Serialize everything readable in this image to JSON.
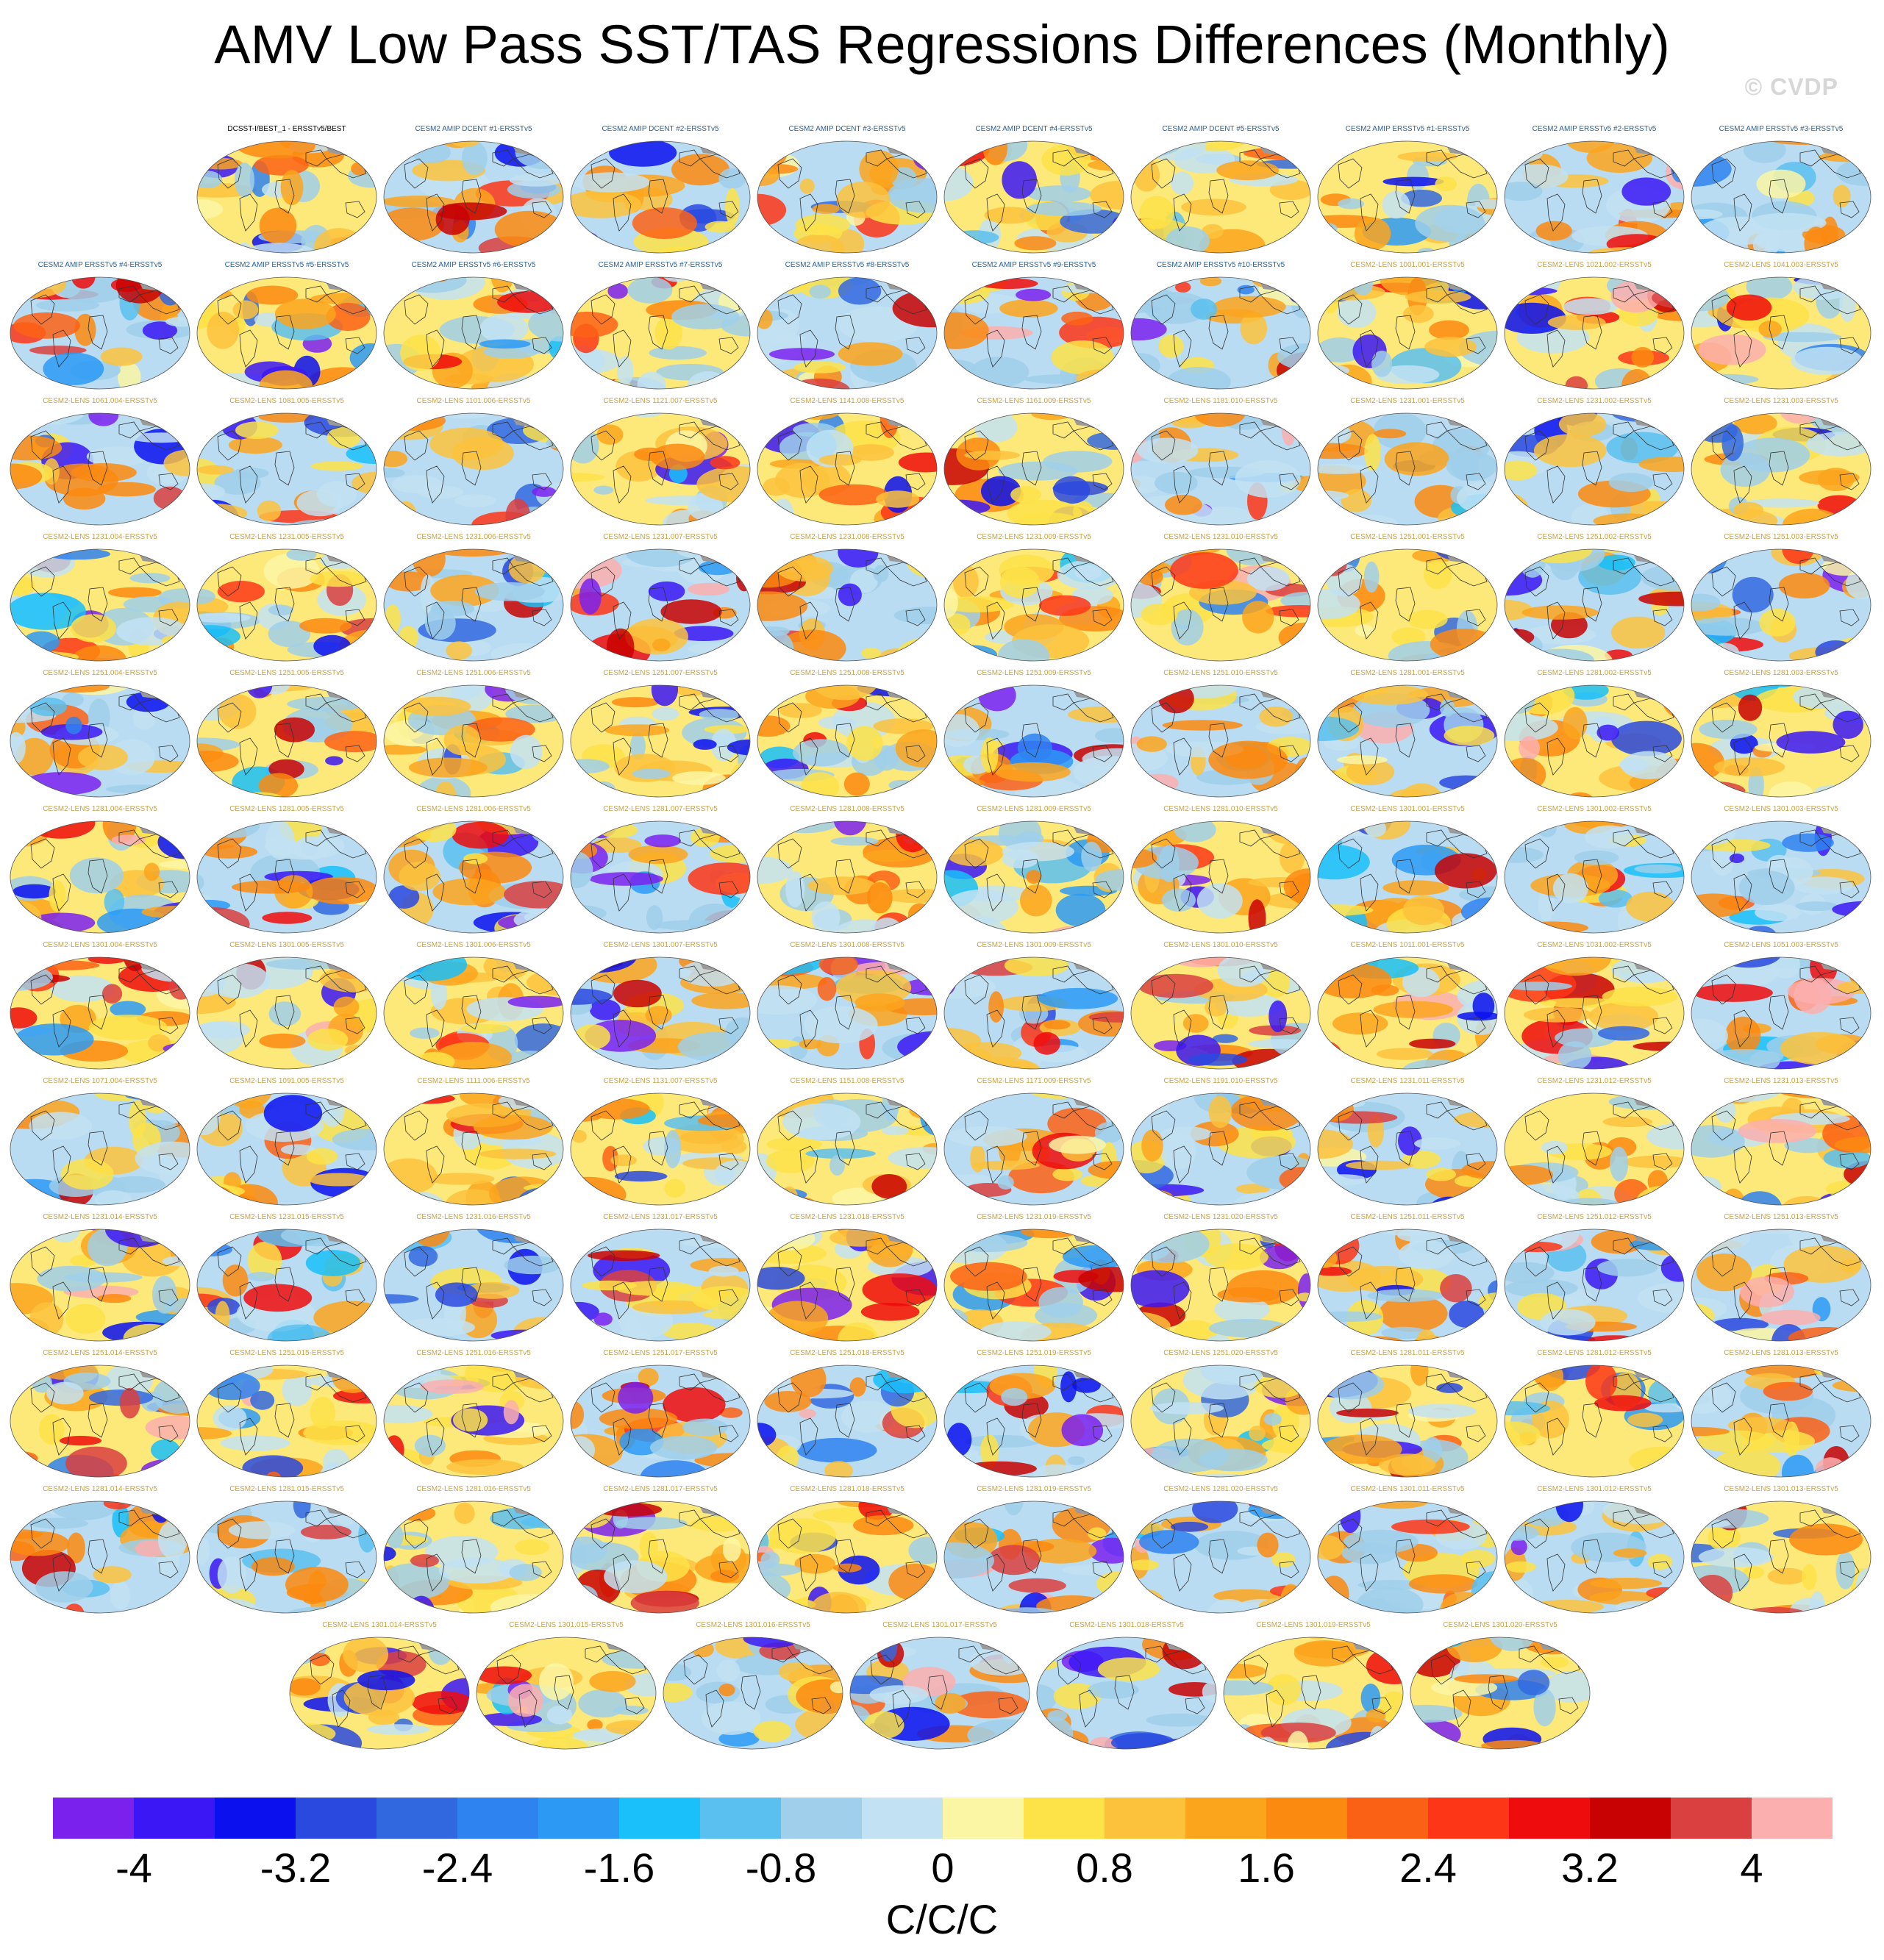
{
  "title": "AMV Low Pass SST/TAS Regressions Differences (Monthly)",
  "watermark": "© CVDP",
  "colors": {
    "obs_label": "#000000",
    "amip_label": "#2e5f94",
    "lens_label": "#c8a24a",
    "coastline": "#333333",
    "land": "#9a9a9a",
    "background": "#ffffff"
  },
  "panels": [
    {
      "label": "DCSST-I/BEST_1 - ERSSTv5/BEST",
      "group": "obs"
    },
    {
      "label": "CESM2 AMIP DCENT #1-ERSSTv5",
      "group": "amip"
    },
    {
      "label": "CESM2 AMIP DCENT #2-ERSSTv5",
      "group": "amip"
    },
    {
      "label": "CESM2 AMIP DCENT #3-ERSSTv5",
      "group": "amip"
    },
    {
      "label": "CESM2 AMIP DCENT #4-ERSSTv5",
      "group": "amip"
    },
    {
      "label": "CESM2 AMIP DCENT #5-ERSSTv5",
      "group": "amip"
    },
    {
      "label": "CESM2 AMIP ERSSTv5 #1-ERSSTv5",
      "group": "amip"
    },
    {
      "label": "CESM2 AMIP ERSSTv5 #2-ERSSTv5",
      "group": "amip"
    },
    {
      "label": "CESM2 AMIP ERSSTv5 #3-ERSSTv5",
      "group": "amip"
    },
    {
      "label": "CESM2 AMIP ERSSTv5 #4-ERSSTv5",
      "group": "amip"
    },
    {
      "label": "CESM2 AMIP ERSSTv5 #5-ERSSTv5",
      "group": "amip"
    },
    {
      "label": "CESM2 AMIP ERSSTv5 #6-ERSSTv5",
      "group": "amip"
    },
    {
      "label": "CESM2 AMIP ERSSTv5 #7-ERSSTv5",
      "group": "amip"
    },
    {
      "label": "CESM2 AMIP ERSSTv5 #8-ERSSTv5",
      "group": "amip"
    },
    {
      "label": "CESM2 AMIP ERSSTv5 #9-ERSSTv5",
      "group": "amip"
    },
    {
      "label": "CESM2 AMIP ERSSTv5 #10-ERSSTv5",
      "group": "amip"
    },
    {
      "label": "CESM2-LENS 1001.001-ERSSTv5",
      "group": "lens"
    },
    {
      "label": "CESM2-LENS 1021.002-ERSSTv5",
      "group": "lens"
    },
    {
      "label": "CESM2-LENS 1041.003-ERSSTv5",
      "group": "lens"
    },
    {
      "label": "CESM2-LENS 1061.004-ERSSTv5",
      "group": "lens"
    },
    {
      "label": "CESM2-LENS 1081.005-ERSSTv5",
      "group": "lens"
    },
    {
      "label": "CESM2-LENS 1101.006-ERSSTv5",
      "group": "lens"
    },
    {
      "label": "CESM2-LENS 1121.007-ERSSTv5",
      "group": "lens"
    },
    {
      "label": "CESM2-LENS 1141.008-ERSSTv5",
      "group": "lens"
    },
    {
      "label": "CESM2-LENS 1161.009-ERSSTv5",
      "group": "lens"
    },
    {
      "label": "CESM2-LENS 1181.010-ERSSTv5",
      "group": "lens"
    },
    {
      "label": "CESM2-LENS 1231.001-ERSSTv5",
      "group": "lens"
    },
    {
      "label": "CESM2-LENS 1231.002-ERSSTv5",
      "group": "lens"
    },
    {
      "label": "CESM2-LENS 1231.003-ERSSTv5",
      "group": "lens"
    },
    {
      "label": "CESM2-LENS 1231.004-ERSSTv5",
      "group": "lens"
    },
    {
      "label": "CESM2-LENS 1231.005-ERSSTv5",
      "group": "lens"
    },
    {
      "label": "CESM2-LENS 1231.006-ERSSTv5",
      "group": "lens"
    },
    {
      "label": "CESM2-LENS 1231.007-ERSSTv5",
      "group": "lens"
    },
    {
      "label": "CESM2-LENS 1231.008-ERSSTv5",
      "group": "lens"
    },
    {
      "label": "CESM2-LENS 1231.009-ERSSTv5",
      "group": "lens"
    },
    {
      "label": "CESM2-LENS 1231.010-ERSSTv5",
      "group": "lens"
    },
    {
      "label": "CESM2-LENS 1251.001-ERSSTv5",
      "group": "lens"
    },
    {
      "label": "CESM2-LENS 1251.002-ERSSTv5",
      "group": "lens"
    },
    {
      "label": "CESM2-LENS 1251.003-ERSSTv5",
      "group": "lens"
    },
    {
      "label": "CESM2-LENS 1251.004-ERSSTv5",
      "group": "lens"
    },
    {
      "label": "CESM2-LENS 1251.005-ERSSTv5",
      "group": "lens"
    },
    {
      "label": "CESM2-LENS 1251.006-ERSSTv5",
      "group": "lens"
    },
    {
      "label": "CESM2-LENS 1251.007-ERSSTv5",
      "group": "lens"
    },
    {
      "label": "CESM2-LENS 1251.008-ERSSTv5",
      "group": "lens"
    },
    {
      "label": "CESM2-LENS 1251.009-ERSSTv5",
      "group": "lens"
    },
    {
      "label": "CESM2-LENS 1251.010-ERSSTv5",
      "group": "lens"
    },
    {
      "label": "CESM2-LENS 1281.001-ERSSTv5",
      "group": "lens"
    },
    {
      "label": "CESM2-LENS 1281.002-ERSSTv5",
      "group": "lens"
    },
    {
      "label": "CESM2-LENS 1281.003-ERSSTv5",
      "group": "lens"
    },
    {
      "label": "CESM2-LENS 1281.004-ERSSTv5",
      "group": "lens"
    },
    {
      "label": "CESM2-LENS 1281.005-ERSSTv5",
      "group": "lens"
    },
    {
      "label": "CESM2-LENS 1281.006-ERSSTv5",
      "group": "lens"
    },
    {
      "label": "CESM2-LENS 1281.007-ERSSTv5",
      "group": "lens"
    },
    {
      "label": "CESM2-LENS 1281.008-ERSSTv5",
      "group": "lens"
    },
    {
      "label": "CESM2-LENS 1281.009-ERSSTv5",
      "group": "lens"
    },
    {
      "label": "CESM2-LENS 1281.010-ERSSTv5",
      "group": "lens"
    },
    {
      "label": "CESM2-LENS 1301.001-ERSSTv5",
      "group": "lens"
    },
    {
      "label": "CESM2-LENS 1301.002-ERSSTv5",
      "group": "lens"
    },
    {
      "label": "CESM2-LENS 1301.003-ERSSTv5",
      "group": "lens"
    },
    {
      "label": "CESM2-LENS 1301.004-ERSSTv5",
      "group": "lens"
    },
    {
      "label": "CESM2-LENS 1301.005-ERSSTv5",
      "group": "lens"
    },
    {
      "label": "CESM2-LENS 1301.006-ERSSTv5",
      "group": "lens"
    },
    {
      "label": "CESM2-LENS 1301.007-ERSSTv5",
      "group": "lens"
    },
    {
      "label": "CESM2-LENS 1301.008-ERSSTv5",
      "group": "lens"
    },
    {
      "label": "CESM2-LENS 1301.009-ERSSTv5",
      "group": "lens"
    },
    {
      "label": "CESM2-LENS 1301.010-ERSSTv5",
      "group": "lens"
    },
    {
      "label": "CESM2-LENS 1011.001-ERSSTv5",
      "group": "lens"
    },
    {
      "label": "CESM2-LENS 1031.002-ERSSTv5",
      "group": "lens"
    },
    {
      "label": "CESM2-LENS 1051.003-ERSSTv5",
      "group": "lens"
    },
    {
      "label": "CESM2-LENS 1071.004-ERSSTv5",
      "group": "lens"
    },
    {
      "label": "CESM2-LENS 1091.005-ERSSTv5",
      "group": "lens"
    },
    {
      "label": "CESM2-LENS 1111.006-ERSSTv5",
      "group": "lens"
    },
    {
      "label": "CESM2-LENS 1131.007-ERSSTv5",
      "group": "lens"
    },
    {
      "label": "CESM2-LENS 1151.008-ERSSTv5",
      "group": "lens"
    },
    {
      "label": "CESM2-LENS 1171.009-ERSSTv5",
      "group": "lens"
    },
    {
      "label": "CESM2-LENS 1191.010-ERSSTv5",
      "group": "lens"
    },
    {
      "label": "CESM2-LENS 1231.011-ERSSTv5",
      "group": "lens"
    },
    {
      "label": "CESM2-LENS 1231.012-ERSSTv5",
      "group": "lens"
    },
    {
      "label": "CESM2-LENS 1231.013-ERSSTv5",
      "group": "lens"
    },
    {
      "label": "CESM2-LENS 1231.014-ERSSTv5",
      "group": "lens"
    },
    {
      "label": "CESM2-LENS 1231.015-ERSSTv5",
      "group": "lens"
    },
    {
      "label": "CESM2-LENS 1231.016-ERSSTv5",
      "group": "lens"
    },
    {
      "label": "CESM2-LENS 1231.017-ERSSTv5",
      "group": "lens"
    },
    {
      "label": "CESM2-LENS 1231.018-ERSSTv5",
      "group": "lens"
    },
    {
      "label": "CESM2-LENS 1231.019-ERSSTv5",
      "group": "lens"
    },
    {
      "label": "CESM2-LENS 1231.020-ERSSTv5",
      "group": "lens"
    },
    {
      "label": "CESM2-LENS 1251.011-ERSSTv5",
      "group": "lens"
    },
    {
      "label": "CESM2-LENS 1251.012-ERSSTv5",
      "group": "lens"
    },
    {
      "label": "CESM2-LENS 1251.013-ERSSTv5",
      "group": "lens"
    },
    {
      "label": "CESM2-LENS 1251.014-ERSSTv5",
      "group": "lens"
    },
    {
      "label": "CESM2-LENS 1251.015-ERSSTv5",
      "group": "lens"
    },
    {
      "label": "CESM2-LENS 1251.016-ERSSTv5",
      "group": "lens"
    },
    {
      "label": "CESM2-LENS 1251.017-ERSSTv5",
      "group": "lens"
    },
    {
      "label": "CESM2-LENS 1251.018-ERSSTv5",
      "group": "lens"
    },
    {
      "label": "CESM2-LENS 1251.019-ERSSTv5",
      "group": "lens"
    },
    {
      "label": "CESM2-LENS 1251.020-ERSSTv5",
      "group": "lens"
    },
    {
      "label": "CESM2-LENS 1281.011-ERSSTv5",
      "group": "lens"
    },
    {
      "label": "CESM2-LENS 1281.012-ERSSTv5",
      "group": "lens"
    },
    {
      "label": "CESM2-LENS 1281.013-ERSSTv5",
      "group": "lens"
    },
    {
      "label": "CESM2-LENS 1281.014-ERSSTv5",
      "group": "lens"
    },
    {
      "label": "CESM2-LENS 1281.015-ERSSTv5",
      "group": "lens"
    },
    {
      "label": "CESM2-LENS 1281.016-ERSSTv5",
      "group": "lens"
    },
    {
      "label": "CESM2-LENS 1281.017-ERSSTv5",
      "group": "lens"
    },
    {
      "label": "CESM2-LENS 1281.018-ERSSTv5",
      "group": "lens"
    },
    {
      "label": "CESM2-LENS 1281.019-ERSSTv5",
      "group": "lens"
    },
    {
      "label": "CESM2-LENS 1281.020-ERSSTv5",
      "group": "lens"
    },
    {
      "label": "CESM2-LENS 1301.011-ERSSTv5",
      "group": "lens"
    },
    {
      "label": "CESM2-LENS 1301.012-ERSSTv5",
      "group": "lens"
    },
    {
      "label": "CESM2-LENS 1301.013-ERSSTv5",
      "group": "lens"
    },
    {
      "label": "CESM2-LENS 1301.014-ERSSTv5",
      "group": "lens"
    },
    {
      "label": "CESM2-LENS 1301.015-ERSSTv5",
      "group": "lens"
    },
    {
      "label": "CESM2-LENS 1301.016-ERSSTv5",
      "group": "lens"
    },
    {
      "label": "CESM2-LENS 1301.017-ERSSTv5",
      "group": "lens"
    },
    {
      "label": "CESM2-LENS 1301.018-ERSSTv5",
      "group": "lens"
    },
    {
      "label": "CESM2-LENS 1301.019-ERSSTv5",
      "group": "lens"
    },
    {
      "label": "CESM2-LENS 1301.020-ERSSTv5",
      "group": "lens"
    }
  ],
  "colorbar": {
    "colors": [
      "#7a21ee",
      "#3b17f5",
      "#0a10ee",
      "#2a49df",
      "#3268df",
      "#2f83f0",
      "#2c9af5",
      "#19c0f9",
      "#5ac0ef",
      "#9fcfea",
      "#c2e2f3",
      "#fbf6a4",
      "#fde248",
      "#fcc23c",
      "#fba51d",
      "#fb8a11",
      "#fb6115",
      "#fd3617",
      "#ee0c0c",
      "#c80202",
      "#db4040",
      "#fcafaf"
    ],
    "tick_labels": [
      "-4",
      "-3.2",
      "-2.4",
      "-1.6",
      "-0.8",
      "0",
      "0.8",
      "1.6",
      "2.4",
      "3.2",
      "4"
    ],
    "units": "C/C/C"
  }
}
